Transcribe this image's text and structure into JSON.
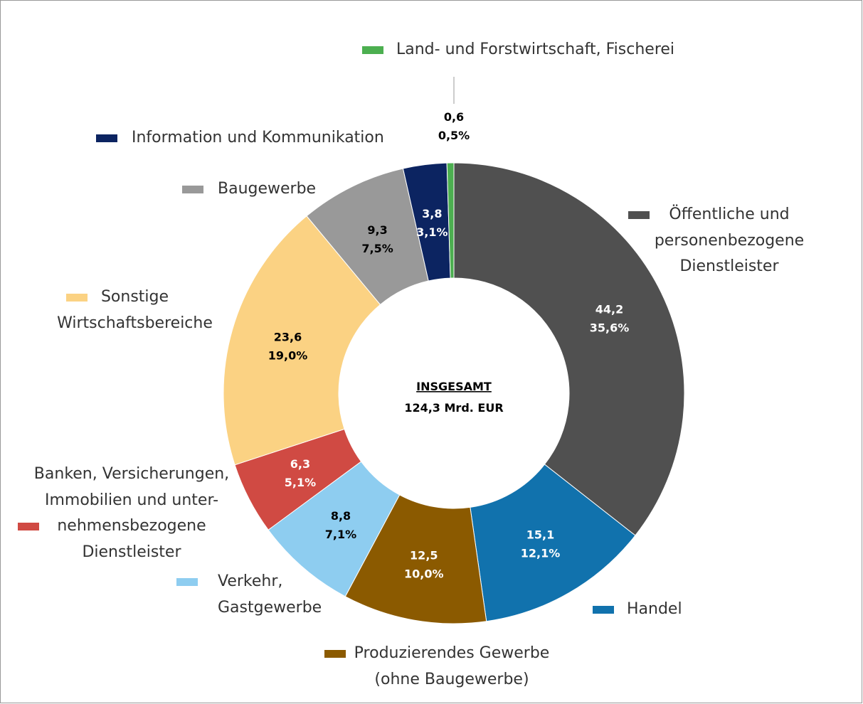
{
  "chart_data": {
    "type": "donut",
    "center_title": "INSGESAMT",
    "center_label": "124,3 Mrd. EUR",
    "categories": [
      "Öffentliche und\npersonenbezogene\nDienstleister",
      "Handel",
      "Produzierendes Gewerbe\n(ohne Baugewerbe)",
      "Verkehr,\nGastgewerbe",
      "Banken, Versicherungen,\nImmobilien und unter-\nnehmensbezogene\nDienstleister",
      "Sonstige\nWirtschaftsbereiche",
      "Baugewerbe",
      "Information und Kommunikation",
      "Land- und Forstwirtschaft, Fischerei"
    ],
    "values": [
      44.2,
      15.1,
      12.5,
      8.8,
      6.3,
      23.6,
      9.3,
      3.8,
      0.6
    ],
    "value_labels": [
      "44,2",
      "15,1",
      "12,5",
      "8,8",
      "6,3",
      "23,6",
      "9,3",
      "3,8",
      "0,6"
    ],
    "percentages": [
      35.6,
      12.1,
      10.0,
      7.1,
      5.1,
      19.0,
      7.5,
      3.1,
      0.5
    ],
    "percentage_labels": [
      "35,6%",
      "12,1%",
      "10,0%",
      "7,1%",
      "5,1%",
      "19,0%",
      "7,5%",
      "3,1%",
      "0,5%"
    ],
    "colors": [
      "#505050",
      "#1172ad",
      "#8b5a00",
      "#8ecdf0",
      "#d04a43",
      "#fbd283",
      "#999999",
      "#0c2461",
      "#4caf50"
    ]
  }
}
